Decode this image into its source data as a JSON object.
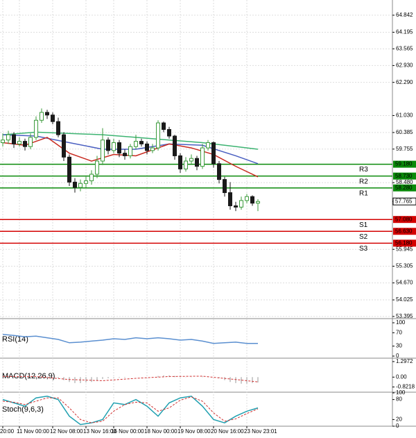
{
  "chart_data": [
    {
      "type": "candlestick",
      "categories": [
        "20:00",
        null,
        null,
        "11 Nov 00:00",
        null,
        null,
        null,
        null,
        null,
        "12 Nov 08:00",
        null,
        null,
        null,
        null,
        null,
        "13 Nov 16:00",
        null,
        null,
        null,
        null,
        "16 Nov 00:00",
        null,
        null,
        null,
        null,
        null,
        "18 Nov 00:00",
        null,
        null,
        null,
        null,
        null,
        "19 Nov 08:00",
        null,
        null,
        null,
        null,
        null,
        "20 Nov 16:00",
        null,
        null,
        null,
        null,
        null,
        "23 Nov 23:01",
        null,
        null
      ],
      "open": [
        60.0,
        60.1,
        60.3,
        59.95,
        60.05,
        59.85,
        60.2,
        60.85,
        61.15,
        61.05,
        60.8,
        60.3,
        59.45,
        58.5,
        58.3,
        58.45,
        58.55,
        58.8,
        59.3,
        60.1,
        59.7,
        60.0,
        59.6,
        59.5,
        59.85,
        60.05,
        59.95,
        59.7,
        59.8,
        60.75,
        60.5,
        60.25,
        59.5,
        59.0,
        59.3,
        59.4,
        59.1,
        59.8,
        60.0,
        59.2,
        58.6,
        58.1,
        57.6,
        57.55,
        57.8,
        57.95,
        57.7
      ],
      "high": [
        60.35,
        60.45,
        60.4,
        60.2,
        60.15,
        60.35,
        61.0,
        61.3,
        61.25,
        61.15,
        60.95,
        60.4,
        59.55,
        58.65,
        58.6,
        58.75,
        58.95,
        59.5,
        60.55,
        60.2,
        60.15,
        60.1,
        59.75,
        59.95,
        60.3,
        60.15,
        60.05,
        59.95,
        60.85,
        60.8,
        60.6,
        60.3,
        59.6,
        59.45,
        59.55,
        59.5,
        59.95,
        60.1,
        60.05,
        59.3,
        58.7,
        58.5,
        57.75,
        57.95,
        58.05,
        58.0,
        57.85
      ],
      "low": [
        59.85,
        59.95,
        59.8,
        59.85,
        59.7,
        59.75,
        60.1,
        60.75,
        60.9,
        60.7,
        60.2,
        59.3,
        58.35,
        58.1,
        58.15,
        58.3,
        58.4,
        58.65,
        59.15,
        59.55,
        59.6,
        59.45,
        59.35,
        59.4,
        59.75,
        59.85,
        59.55,
        59.6,
        59.7,
        60.4,
        60.15,
        59.35,
        58.85,
        58.9,
        59.2,
        58.95,
        59.0,
        59.7,
        59.05,
        58.45,
        57.95,
        57.45,
        57.4,
        57.45,
        57.7,
        57.6,
        57.4
      ],
      "close": [
        60.1,
        60.3,
        59.95,
        60.05,
        59.85,
        60.2,
        60.85,
        61.15,
        61.05,
        60.8,
        60.3,
        59.45,
        58.5,
        58.3,
        58.45,
        58.55,
        58.8,
        59.3,
        60.1,
        59.7,
        60.0,
        59.6,
        59.5,
        59.85,
        60.05,
        59.95,
        59.7,
        59.8,
        60.75,
        60.5,
        60.25,
        59.5,
        59.0,
        59.3,
        59.4,
        59.1,
        59.8,
        60.0,
        59.2,
        58.6,
        58.1,
        57.6,
        57.55,
        57.8,
        57.95,
        57.7,
        57.765
      ],
      "up_color": "#3a9a3a",
      "down_color": "#1a1a1a",
      "ylim": [
        53.34,
        65.42
      ],
      "yticks": [
        64.842,
        64.195,
        63.565,
        {
          "value": 62.93,
          "label": "62.930"
        },
        {
          "value": 62.29,
          "label": "62.290"
        },
        {
          "value": 61.03,
          "label": "61.030"
        },
        60.385,
        59.755,
        {
          "value": 58.48,
          "label": "58.480"
        },
        55.945,
        55.305,
        {
          "value": 54.67,
          "label": "54.670"
        },
        54.025,
        53.395
      ],
      "grid": true,
      "moving_averages": [
        {
          "color": "#3cb371",
          "x": [
            0,
            6,
            12,
            18,
            24,
            30,
            36,
            42,
            46
          ],
          "values": [
            60.3,
            60.4,
            60.35,
            60.3,
            60.2,
            60.1,
            60.0,
            59.85,
            59.75
          ]
        },
        {
          "color": "#4a5fc1",
          "x": [
            0,
            6,
            12,
            18,
            24,
            30,
            36,
            42,
            46
          ],
          "values": [
            60.3,
            60.25,
            60.0,
            59.75,
            59.75,
            59.95,
            59.9,
            59.5,
            59.2
          ]
        },
        {
          "color": "#c8281e",
          "x": [
            0,
            4,
            8,
            12,
            16,
            20,
            24,
            30,
            34,
            38,
            42,
            46
          ],
          "values": [
            60.0,
            59.9,
            60.2,
            59.6,
            59.3,
            59.55,
            59.5,
            59.95,
            59.8,
            59.55,
            59.1,
            58.7
          ]
        }
      ],
      "levels": [
        {
          "name": "R3",
          "value": 59.18,
          "label": "59.180",
          "color": "#0a8a0a"
        },
        {
          "name": "R2",
          "value": 58.73,
          "label": "58.730",
          "color": "#0a8a0a"
        },
        {
          "name": "R1",
          "value": 58.28,
          "label": "58.280",
          "color": "#0a8a0a"
        },
        {
          "name": "S1",
          "value": 57.08,
          "label": "57.080",
          "color": "#d40000"
        },
        {
          "name": "S2",
          "value": 56.63,
          "label": "56.630",
          "color": "#d40000"
        },
        {
          "name": "S3",
          "value": 56.18,
          "label": "56.180",
          "color": "#d40000"
        }
      ],
      "last_price": 57.765
    },
    {
      "type": "line",
      "title": "RSI(14)",
      "ylim": [
        0,
        100
      ],
      "yticks": [
        100,
        70,
        30,
        0
      ],
      "series": [
        {
          "color": "#5a8fd0",
          "style": "solid",
          "x": [
            0,
            2,
            4,
            6,
            8,
            10,
            12,
            14,
            16,
            18,
            20,
            22,
            24,
            26,
            28,
            30,
            32,
            34,
            36,
            38,
            40,
            42,
            44,
            46
          ],
          "values": [
            65,
            62,
            58,
            60,
            55,
            50,
            40,
            42,
            45,
            48,
            52,
            50,
            55,
            52,
            55,
            52,
            48,
            50,
            45,
            38,
            40,
            42,
            38,
            38
          ]
        }
      ]
    },
    {
      "type": "line",
      "title": "MACD(12,26,9)",
      "ylim": [
        -1.2,
        1.35
      ],
      "yticks": [
        {
          "value": 1.2972,
          "label": "1.2972"
        },
        {
          "value": 0,
          "label": "0.00"
        },
        {
          "value": -0.8218,
          "label": "-0.8218"
        }
      ],
      "histogram": {
        "color": "#999999",
        "values": [
          0.1,
          0.08,
          0.05,
          0.02,
          0,
          0.02,
          0.05,
          0.08,
          0.05,
          0,
          -0.1,
          -0.25,
          -0.4,
          -0.5,
          -0.5,
          -0.45,
          -0.4,
          -0.3,
          -0.15,
          -0.1,
          -0.05,
          -0.05,
          -0.05,
          0,
          0,
          0.02,
          0,
          0,
          0.1,
          0.15,
          0.15,
          0.1,
          0.05,
          0.02,
          0.02,
          0,
          0.05,
          0.05,
          0,
          -0.1,
          -0.25,
          -0.4,
          -0.5,
          -0.55,
          -0.55,
          -0.5,
          -0.45
        ]
      },
      "series": [
        {
          "color": "#d03030",
          "style": "dashed",
          "x": [
            0,
            6,
            12,
            18,
            24,
            30,
            36,
            42,
            46
          ],
          "values": [
            0.05,
            0.05,
            -0.2,
            -0.3,
            -0.1,
            0.05,
            0.08,
            -0.2,
            -0.4
          ]
        }
      ]
    },
    {
      "type": "line",
      "title": "Stoch(9,6,3)",
      "ylim": [
        0,
        100
      ],
      "yticks": [
        100,
        80,
        20,
        0
      ],
      "series": [
        {
          "color": "#20a0b0",
          "style": "solid",
          "x": [
            0,
            2,
            4,
            6,
            8,
            10,
            12,
            14,
            16,
            18,
            20,
            22,
            24,
            26,
            28,
            30,
            32,
            34,
            36,
            38,
            40,
            42,
            44,
            46
          ],
          "values": [
            80,
            70,
            60,
            85,
            90,
            80,
            30,
            5,
            10,
            20,
            70,
            65,
            80,
            60,
            30,
            70,
            85,
            90,
            60,
            20,
            10,
            30,
            45,
            55
          ]
        },
        {
          "color": "#d03030",
          "style": "dashed",
          "x": [
            0,
            2,
            4,
            6,
            8,
            10,
            12,
            14,
            16,
            18,
            20,
            22,
            24,
            26,
            28,
            30,
            32,
            34,
            36,
            38,
            40,
            42,
            44,
            46
          ],
          "values": [
            75,
            72,
            65,
            75,
            85,
            85,
            55,
            20,
            10,
            15,
            45,
            65,
            72,
            70,
            45,
            55,
            78,
            88,
            75,
            40,
            15,
            22,
            38,
            52
          ]
        }
      ]
    }
  ]
}
